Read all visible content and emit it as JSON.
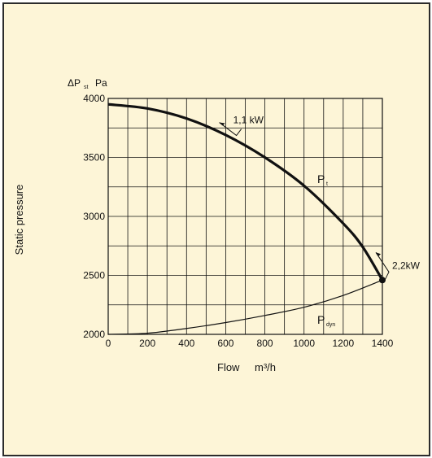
{
  "chart_data": {
    "type": "line",
    "x_axis": {
      "label": "Flow",
      "unit": "m³/h",
      "range": [
        0,
        1400
      ],
      "ticks": [
        0,
        200,
        400,
        600,
        800,
        1000,
        1200,
        1400
      ],
      "tick_labels": [
        "0",
        "200",
        "400",
        "600",
        "800",
        "1000",
        "1200",
        "1400"
      ]
    },
    "y_axis": {
      "label": "Static pressure",
      "header_symbol": "ΔP",
      "header_subscript": "st",
      "header_unit": "Pa",
      "range": [
        2000,
        4000
      ],
      "ticks": [
        2000,
        2500,
        3000,
        3500,
        4000
      ],
      "tick_labels": [
        "2000",
        "2500",
        "3000",
        "3500",
        "4000"
      ]
    },
    "grid": true,
    "series": [
      {
        "name": "P",
        "subscript": "t",
        "style": "thick",
        "points": [
          [
            0,
            3950
          ],
          [
            200,
            3915
          ],
          [
            400,
            3830
          ],
          [
            600,
            3690
          ],
          [
            800,
            3500
          ],
          [
            1000,
            3260
          ],
          [
            1200,
            2940
          ],
          [
            1300,
            2740
          ],
          [
            1400,
            2460
          ]
        ]
      },
      {
        "name": "P",
        "subscript": "dyn",
        "style": "thin",
        "points": [
          [
            0,
            2000
          ],
          [
            200,
            2010
          ],
          [
            400,
            2050
          ],
          [
            600,
            2100
          ],
          [
            800,
            2160
          ],
          [
            1000,
            2230
          ],
          [
            1200,
            2330
          ],
          [
            1400,
            2460
          ]
        ]
      }
    ],
    "annotations": [
      {
        "text": "1,1 kW",
        "x": 580,
        "y": 3810
      },
      {
        "text": "2,2kW",
        "x": 1400,
        "y": 2460
      }
    ],
    "operating_point": {
      "x": 1400,
      "y": 2460
    }
  }
}
